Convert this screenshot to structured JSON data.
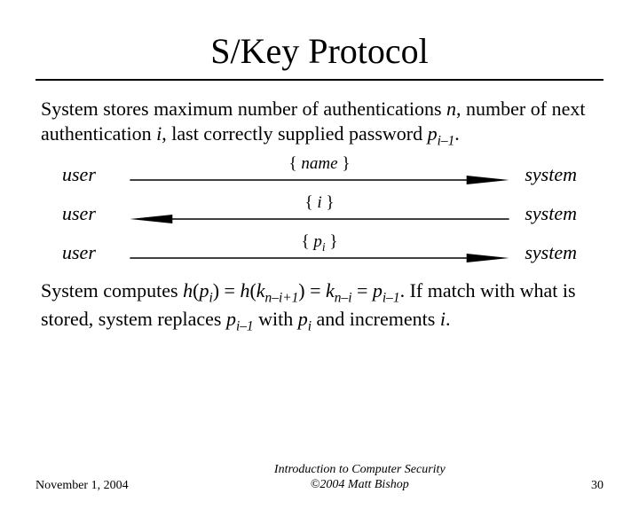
{
  "title": "S/Key Protocol",
  "intro_html": "System stores maximum number of authentications <i>n</i>, number of next authentication <i>i</i>, last correctly supplied password <i>p<sub>i–1</sub></i>.",
  "exchanges": [
    {
      "left": "user",
      "label_html": "<span class='brace'>{ </span><i>name</i><span class='brace'> }</span>",
      "right": "system",
      "dir": "right"
    },
    {
      "left": "user",
      "label_html": "<span class='brace'>{ </span><i>i</i><span class='brace'> }</span>",
      "right": "system",
      "dir": "left"
    },
    {
      "left": "user",
      "label_html": "<span class='brace'>{ </span><i>p<sub>i</sub></i><span class='brace'> }</span>",
      "right": "system",
      "dir": "right"
    }
  ],
  "outro_html": "System computes <i>h</i>(<i>p<sub>i</sub></i>) = <i>h</i>(<i>k<sub>n–i+1</sub></i>) = <i>k<sub>n–i</sub></i> = <i>p<sub>i–1</sub></i>. If match with what is stored, system replaces <i>p<sub>i–1</sub></i> with <i>p<sub>i</sub></i> and increments <i>i</i>.",
  "footer": {
    "date": "November 1, 2004",
    "center_line1": "Introduction to Computer Security",
    "center_line2": "©2004 Matt Bishop",
    "page": "30"
  },
  "colors": {
    "fg": "#000000",
    "bg": "#ffffff"
  }
}
